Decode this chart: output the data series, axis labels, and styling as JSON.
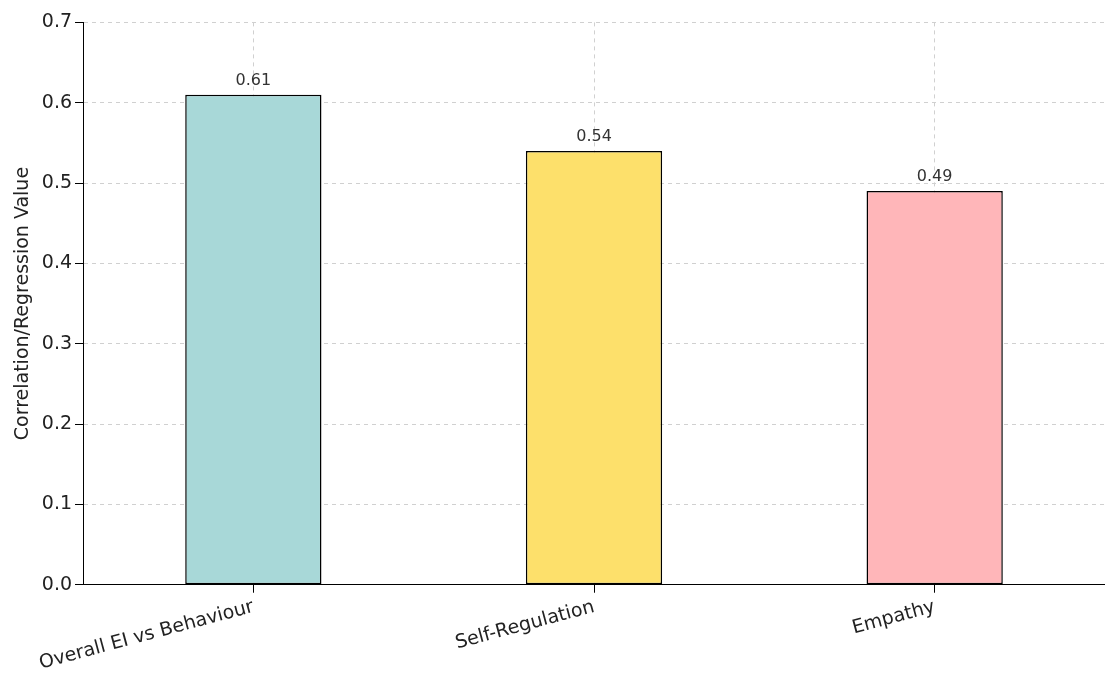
{
  "chart_data": {
    "type": "bar",
    "ylabel": "Correlation/Regression Value",
    "categories": [
      "Overall EI vs Behaviour",
      "Self-Regulation",
      "Empathy"
    ],
    "values": [
      0.61,
      0.54,
      0.49
    ],
    "colors": [
      "#a8d8d8",
      "#fde06b",
      "#ffb6b9"
    ],
    "ylim": [
      0,
      0.7
    ],
    "yticks": [
      {
        "value": 0,
        "label": "0.0"
      },
      0.1,
      0.2,
      0.3,
      0.4,
      0.5,
      0.6,
      0.7
    ],
    "grid": true,
    "data_labels": true,
    "legend": false
  }
}
